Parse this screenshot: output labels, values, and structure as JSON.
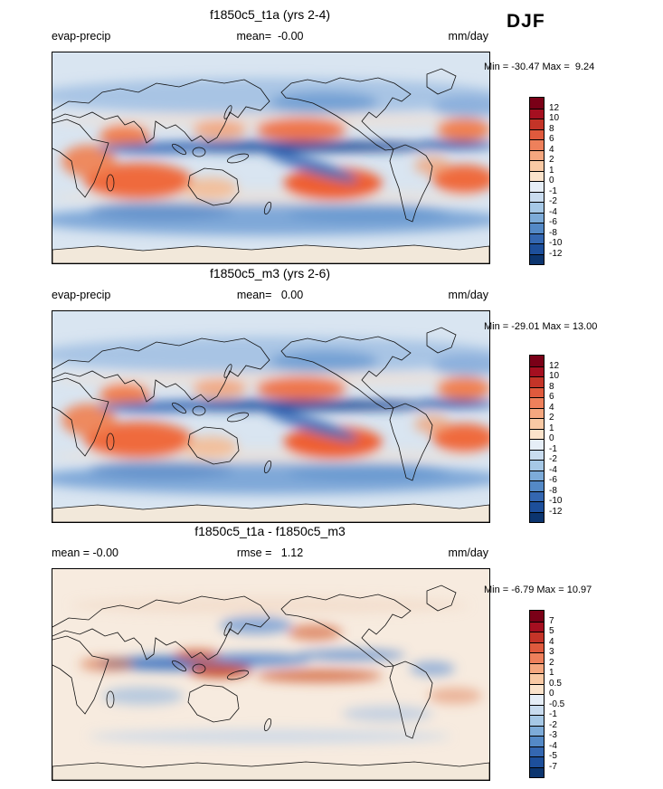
{
  "season_label": "DJF",
  "panels": [
    {
      "title": "f1850c5_t1a (yrs 2-4)",
      "left_label": "evap-precip",
      "center_label": "mean=  -0.00",
      "units_label": "mm/day",
      "minmax_label": "Min = -30.47 Max =  9.24",
      "colorbar": {
        "labels": [
          "12",
          "10",
          "8",
          "6",
          "4",
          "2",
          "1",
          "0",
          "-1",
          "-2",
          "-4",
          "-6",
          "-8",
          "-10",
          "-12"
        ],
        "colors": [
          "#7a0017",
          "#a50f20",
          "#c43428",
          "#df5a3d",
          "#ee805b",
          "#f5a77f",
          "#f9c9a4",
          "#fbe3cb",
          "#e6eef7",
          "#c9dcef",
          "#a6c8e6",
          "#7dabd8",
          "#5489c6",
          "#3467b1",
          "#1d4f9b",
          "#0c356f"
        ]
      }
    },
    {
      "title": "f1850c5_m3 (yrs 2-6)",
      "left_label": "evap-precip",
      "center_label": "mean=   0.00",
      "units_label": "mm/day",
      "minmax_label": "Min = -29.01 Max = 13.00",
      "colorbar": {
        "labels": [
          "12",
          "10",
          "8",
          "6",
          "4",
          "2",
          "1",
          "0",
          "-1",
          "-2",
          "-4",
          "-6",
          "-8",
          "-10",
          "-12"
        ],
        "colors": [
          "#7a0017",
          "#a50f20",
          "#c43428",
          "#df5a3d",
          "#ee805b",
          "#f5a77f",
          "#f9c9a4",
          "#fbe3cb",
          "#e6eef7",
          "#c9dcef",
          "#a6c8e6",
          "#7dabd8",
          "#5489c6",
          "#3467b1",
          "#1d4f9b",
          "#0c356f"
        ]
      }
    },
    {
      "title": "f1850c5_t1a - f1850c5_m3",
      "left_label": "mean = -0.00",
      "center_label": "rmse =   1.12",
      "units_label": "mm/day",
      "minmax_label": "Min = -6.79 Max = 10.97",
      "colorbar": {
        "labels": [
          "7",
          "5",
          "4",
          "3",
          "2",
          "1",
          "0.5",
          "0",
          "-0.5",
          "-1",
          "-2",
          "-3",
          "-4",
          "-5",
          "-7"
        ],
        "colors": [
          "#7a0017",
          "#a50f20",
          "#c43428",
          "#df5a3d",
          "#ee805b",
          "#f5a77f",
          "#f9c9a4",
          "#fbe3cb",
          "#e6eef7",
          "#c9dcef",
          "#a6c8e6",
          "#7dabd8",
          "#5489c6",
          "#3467b1",
          "#1d4f9b",
          "#0c356f"
        ]
      }
    }
  ],
  "chart_data": [
    {
      "type": "heatmap",
      "title": "f1850c5_t1a (yrs 2-4)",
      "variable": "evap-precip",
      "season": "DJF",
      "units": "mm/day",
      "projection": "global latitude-longitude map (0-360E)",
      "mean": -0.0,
      "min": -30.47,
      "max": 9.24,
      "colorbar_levels": [
        12,
        10,
        8,
        6,
        4,
        2,
        1,
        0,
        -1,
        -2,
        -4,
        -6,
        -8,
        -10,
        -12
      ],
      "palette": "dark red (positive) through white to dark blue (negative)",
      "legend_position": "right vertical colorbar"
    },
    {
      "type": "heatmap",
      "title": "f1850c5_m3 (yrs 2-6)",
      "variable": "evap-precip",
      "season": "DJF",
      "units": "mm/day",
      "projection": "global latitude-longitude map (0-360E)",
      "mean": 0.0,
      "min": -29.01,
      "max": 13.0,
      "colorbar_levels": [
        12,
        10,
        8,
        6,
        4,
        2,
        1,
        0,
        -1,
        -2,
        -4,
        -6,
        -8,
        -10,
        -12
      ],
      "palette": "dark red (positive) through white to dark blue (negative)",
      "legend_position": "right vertical colorbar"
    },
    {
      "type": "heatmap",
      "title": "f1850c5_t1a - f1850c5_m3",
      "variable": "evap-precip difference",
      "season": "DJF",
      "units": "mm/day",
      "projection": "global latitude-longitude map (0-360E)",
      "mean": -0.0,
      "rmse": 1.12,
      "min": -6.79,
      "max": 10.97,
      "colorbar_levels": [
        7,
        5,
        4,
        3,
        2,
        1,
        0.5,
        0,
        -0.5,
        -1,
        -2,
        -3,
        -4,
        -5,
        -7
      ],
      "palette": "dark red (positive) through white to dark blue (negative)",
      "legend_position": "right vertical colorbar"
    }
  ]
}
